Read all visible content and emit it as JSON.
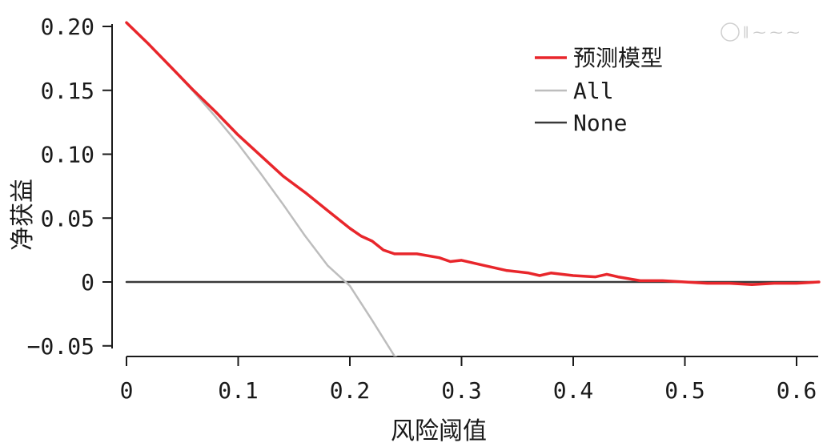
{
  "chart_data": {
    "type": "line",
    "xlabel": "风险阈值",
    "ylabel": "净获益",
    "xlim": [
      0,
      0.62
    ],
    "ylim": [
      -0.06,
      0.21
    ],
    "x_ticks": [
      0,
      0.1,
      0.2,
      0.3,
      0.4,
      0.5,
      0.6
    ],
    "x_tick_labels": [
      "0",
      "0.1",
      "0.2",
      "0.3",
      "0.4",
      "0.5",
      "0.6"
    ],
    "y_ticks": [
      0.2,
      0.15,
      0.1,
      0.05,
      0,
      -0.05
    ],
    "y_tick_labels": [
      "0.20",
      "0.15",
      "0.10",
      "0.05",
      "0",
      "−0.05"
    ],
    "legend_position": "top-right",
    "grid": false,
    "series": [
      {
        "name": "预测模型",
        "color": "#e8262b",
        "x": [
          0,
          0.02,
          0.04,
          0.06,
          0.08,
          0.1,
          0.12,
          0.14,
          0.16,
          0.18,
          0.2,
          0.21,
          0.22,
          0.23,
          0.24,
          0.26,
          0.28,
          0.29,
          0.3,
          0.32,
          0.34,
          0.36,
          0.37,
          0.38,
          0.4,
          0.42,
          0.43,
          0.44,
          0.46,
          0.48,
          0.5,
          0.52,
          0.54,
          0.56,
          0.58,
          0.6,
          0.62
        ],
        "y": [
          0.203,
          0.186,
          0.168,
          0.15,
          0.133,
          0.115,
          0.099,
          0.083,
          0.07,
          0.056,
          0.042,
          0.036,
          0.032,
          0.025,
          0.022,
          0.022,
          0.019,
          0.016,
          0.017,
          0.013,
          0.009,
          0.007,
          0.005,
          0.007,
          0.005,
          0.004,
          0.006,
          0.004,
          0.001,
          0.001,
          0.0,
          -0.001,
          -0.001,
          -0.002,
          -0.001,
          -0.001,
          0.0
        ]
      },
      {
        "name": "All",
        "color": "#bdbdbd",
        "x": [
          0,
          0.02,
          0.04,
          0.06,
          0.08,
          0.1,
          0.12,
          0.14,
          0.16,
          0.18,
          0.2,
          0.22,
          0.24,
          0.245
        ],
        "y": [
          0.203,
          0.186,
          0.168,
          0.149,
          0.129,
          0.108,
          0.085,
          0.061,
          0.036,
          0.013,
          -0.003,
          -0.03,
          -0.058,
          -0.06
        ]
      },
      {
        "name": "None",
        "color": "#3a3a3a",
        "x": [
          0,
          0.62
        ],
        "y": [
          0,
          0
        ]
      }
    ]
  }
}
